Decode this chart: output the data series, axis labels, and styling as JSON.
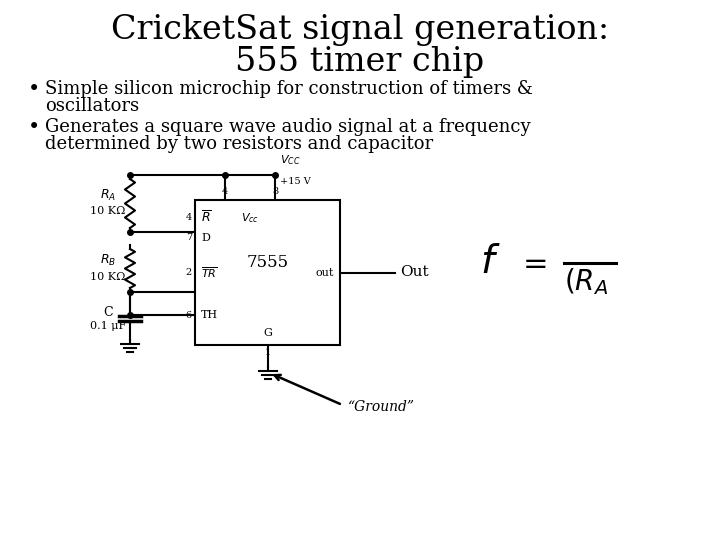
{
  "title_line1": "CricketSat signal generation:",
  "title_line2": "555 timer chip",
  "bullet1_line1": "Simple silicon microchip for construction of timers &",
  "bullet1_line2": "oscillators",
  "bullet2_line1": "Generates a square wave audio signal at a frequency",
  "bullet2_line2": "determined by two resistors and capacitor",
  "ground_label": "“Ground”",
  "background_color": "#ffffff",
  "text_color": "#000000",
  "title_fontsize": 24,
  "bullet_fontsize": 13,
  "chip_label": "7555",
  "vcc_label": "$V_{CC}$",
  "vcc_voltage": "+15 V",
  "out_label": "Out",
  "ra_label": "$R_A$",
  "ra_val": "10 KΩ",
  "rb_label": "$R_B$",
  "rb_val": "10 KΩ",
  "c_label": "C",
  "c_val": "0.1 μF"
}
